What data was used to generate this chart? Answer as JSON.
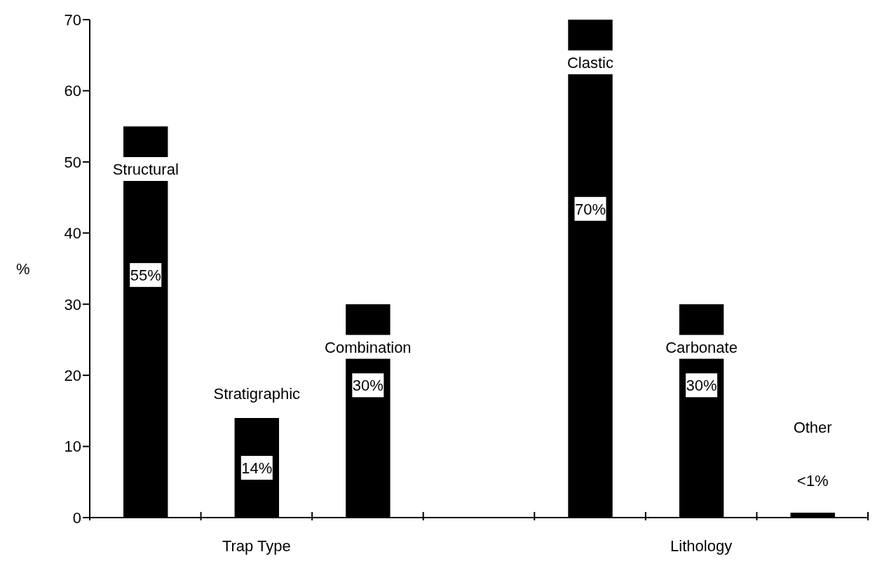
{
  "chart_data": {
    "type": "bar",
    "ylabel": "%",
    "categories": [
      "Structural",
      "Stratigraphic",
      "Combination",
      null,
      "Clastic",
      "Carbonate",
      "Other"
    ],
    "values": [
      55,
      14,
      30,
      null,
      70,
      30,
      0.7
    ],
    "value_labels": [
      "55%",
      "14%",
      "30%",
      null,
      "70%",
      "30%",
      "<1%"
    ],
    "color": "#000000",
    "ylim": [
      0,
      70
    ],
    "yticks": [
      0,
      10,
      20,
      30,
      40,
      50,
      60,
      70
    ],
    "annotations": [
      "Trap Type",
      "Lithology"
    ]
  }
}
